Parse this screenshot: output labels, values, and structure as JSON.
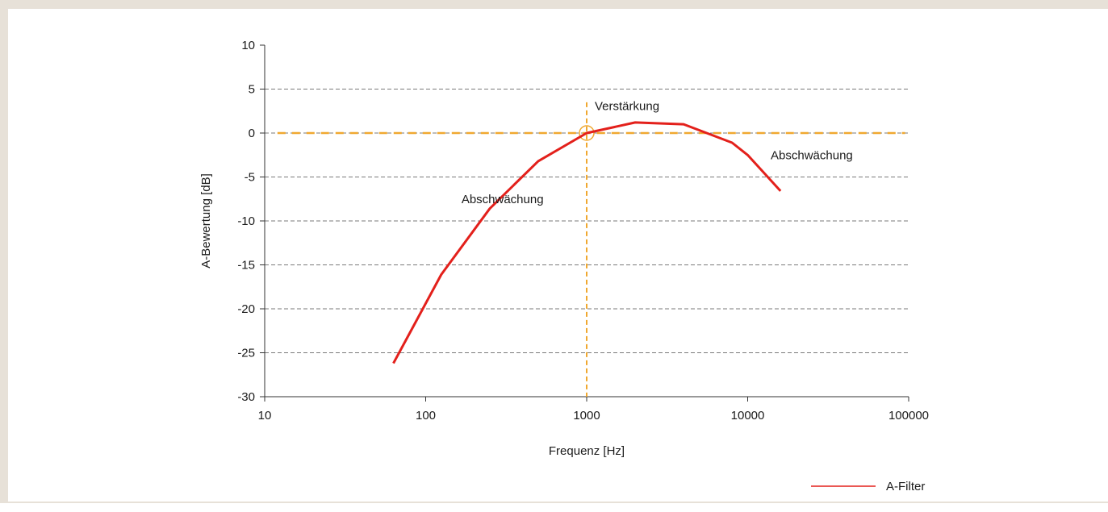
{
  "chart_data": {
    "type": "line",
    "x_scale": "log",
    "xlabel": "Frequenz [Hz]",
    "ylabel": "A-Bewertung [dB]",
    "xlim": [
      10,
      100000
    ],
    "ylim": [
      -30,
      10
    ],
    "x_ticks": [
      10,
      100,
      1000,
      10000,
      100000
    ],
    "x_tick_labels": [
      "10",
      "100",
      "1000",
      "10000",
      "100000"
    ],
    "y_ticks": [
      10,
      5,
      0,
      -5,
      -10,
      -15,
      -20,
      -25,
      -30
    ],
    "y_tick_labels": [
      "10",
      "5",
      "0",
      "-5",
      "-10",
      "-15",
      "-20",
      "-25",
      "-30"
    ],
    "grid": "horizontal dashed",
    "legend_position": "bottom-right",
    "series": [
      {
        "name": "A-Filter",
        "color": "#e3201b",
        "x": [
          63,
          125,
          250,
          500,
          1000,
          2000,
          4000,
          8000,
          10000,
          16000
        ],
        "y": [
          -26.2,
          -16.1,
          -8.6,
          -3.2,
          0.0,
          1.2,
          1.0,
          -1.1,
          -2.5,
          -6.6
        ]
      }
    ],
    "reference_lines": {
      "color": "#f0a830",
      "horizontal_y": 0,
      "vertical_x": 1000,
      "marker": {
        "x": 1000,
        "y": 0
      }
    },
    "annotations": [
      {
        "text": "Verstärkung",
        "x": 1000,
        "y": 2.6
      },
      {
        "text": "Abschwächung",
        "x": 300,
        "y": -8.0
      },
      {
        "text": "Abschwächung",
        "x": 25000,
        "y": -3.0
      }
    ]
  }
}
